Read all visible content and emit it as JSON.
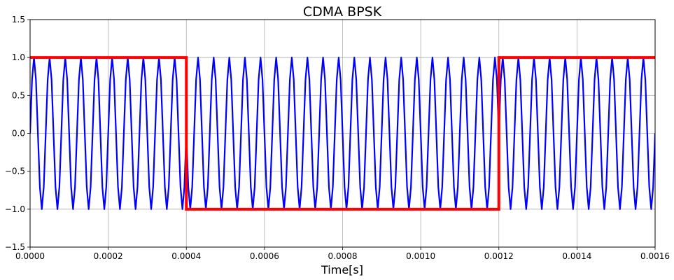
{
  "chart_data": {
    "type": "line",
    "title": "CDMA BPSK",
    "xlabel": "Time[s]",
    "ylabel": "",
    "xlim": [
      0,
      0.0016
    ],
    "ylim": [
      -1.5,
      1.5
    ],
    "grid": true,
    "xticks": [
      0,
      0.0002,
      0.0004,
      0.0006,
      0.0008,
      0.001,
      0.0012,
      0.0014,
      0.0016
    ],
    "xtick_labels": [
      "0.0000",
      "0.0002",
      "0.0004",
      "0.0006",
      "0.0008",
      "0.0010",
      "0.0012",
      "0.0014",
      "0.0016"
    ],
    "yticks": [
      -1.5,
      -1.0,
      -0.5,
      0.0,
      0.5,
      1.0,
      1.5
    ],
    "ytick_labels": [
      "−1.5",
      "−1.0",
      "−0.5",
      "0.0",
      "0.5",
      "1.0",
      "1.5"
    ],
    "series": [
      {
        "color": "#0000ff",
        "style": "sampled sine",
        "frequency_hz": 25000,
        "amplitude": 1.0,
        "phase_flips_at": [
          0.0004,
          0.0012
        ],
        "sample_interval_s": 5e-06
      },
      {
        "color": "#ff0000",
        "style": "step",
        "x": [
          0,
          0.0004,
          0.0004,
          0.0012,
          0.0012,
          0.0016
        ],
        "y": [
          1,
          1,
          -1,
          -1,
          1,
          1
        ]
      }
    ]
  }
}
